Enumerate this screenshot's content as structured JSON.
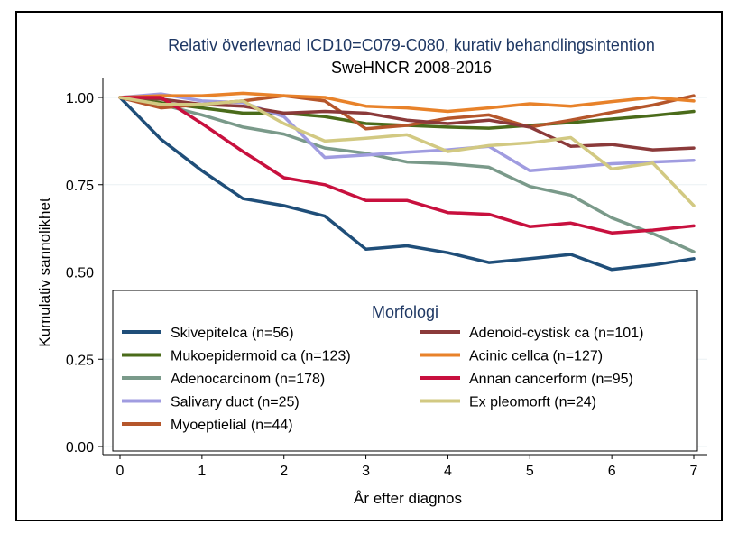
{
  "chart_data": {
    "type": "line",
    "title": "Relativ överlevnad ICD10=C079-C080, kurativ behandlingsintention",
    "subtitle": "SweHNCR 2008-2016",
    "xlabel": "År efter diagnos",
    "ylabel": "Kumulativ sannolikhet",
    "xlim": [
      0,
      7
    ],
    "ylim": [
      0,
      1
    ],
    "x_ticks": [
      "0",
      "1",
      "2",
      "3",
      "4",
      "5",
      "6",
      "7"
    ],
    "y_ticks": [
      "0.00",
      "0.25",
      "0.50",
      "0.75",
      "1.00"
    ],
    "grid": true,
    "legend_title": "Morfologi",
    "legend_position": "bottom-inside",
    "x": [
      0,
      0.5,
      1,
      1.5,
      2,
      2.5,
      3,
      3.5,
      4,
      4.5,
      5,
      5.5,
      6,
      6.5,
      7
    ],
    "series": [
      {
        "name": "Skivepitelca (n=56)",
        "color": "#1f4e79",
        "values": [
          1.0,
          0.88,
          0.79,
          0.71,
          0.69,
          0.66,
          0.565,
          0.575,
          0.555,
          0.527,
          0.538,
          0.55,
          0.507,
          0.52,
          0.538
        ]
      },
      {
        "name": "Mukoepidermoid ca (n=123)",
        "color": "#4a6b1a",
        "values": [
          1.0,
          0.985,
          0.97,
          0.955,
          0.955,
          0.945,
          0.925,
          0.92,
          0.915,
          0.912,
          0.92,
          0.928,
          0.938,
          0.948,
          0.96
        ]
      },
      {
        "name": "Adenocarcinom (n=178)",
        "color": "#7a9a8a",
        "values": [
          1.0,
          0.98,
          0.95,
          0.915,
          0.895,
          0.855,
          0.84,
          0.815,
          0.81,
          0.8,
          0.745,
          0.72,
          0.655,
          0.61,
          0.558
        ]
      },
      {
        "name": "Salivary duct (n=25)",
        "color": "#a09ce0",
        "values": [
          1.0,
          1.01,
          0.99,
          0.985,
          0.945,
          0.828,
          0.835,
          0.843,
          0.85,
          0.86,
          0.79,
          0.8,
          0.81,
          0.815,
          0.82
        ]
      },
      {
        "name": "Myoeptielial (n=44)",
        "color": "#b5562b",
        "values": [
          1.0,
          0.97,
          0.98,
          0.99,
          1.005,
          0.99,
          0.91,
          0.92,
          0.94,
          0.95,
          0.915,
          0.935,
          0.957,
          0.978,
          1.005
        ]
      },
      {
        "name": "Adenoid-cystisk ca (n=101)",
        "color": "#8b3a3a",
        "values": [
          1.0,
          0.995,
          0.98,
          0.975,
          0.955,
          0.96,
          0.955,
          0.935,
          0.925,
          0.935,
          0.915,
          0.86,
          0.865,
          0.85,
          0.855
        ]
      },
      {
        "name": "Acinic cellca (n=127)",
        "color": "#e8822a",
        "values": [
          1.0,
          1.005,
          1.005,
          1.012,
          1.005,
          1.0,
          0.975,
          0.97,
          0.96,
          0.97,
          0.982,
          0.975,
          0.988,
          1.0,
          0.99
        ]
      },
      {
        "name": "Annan cancerform (n=95)",
        "color": "#c8103e",
        "values": [
          1.0,
          1.0,
          0.925,
          0.845,
          0.77,
          0.75,
          0.705,
          0.705,
          0.67,
          0.665,
          0.63,
          0.64,
          0.612,
          0.62,
          0.632
        ]
      },
      {
        "name": "Ex pleomorft (n=24)",
        "color": "#d2c982",
        "values": [
          1.0,
          0.98,
          0.98,
          0.99,
          0.925,
          0.875,
          0.883,
          0.893,
          0.845,
          0.862,
          0.87,
          0.885,
          0.795,
          0.812,
          0.69
        ]
      }
    ]
  }
}
